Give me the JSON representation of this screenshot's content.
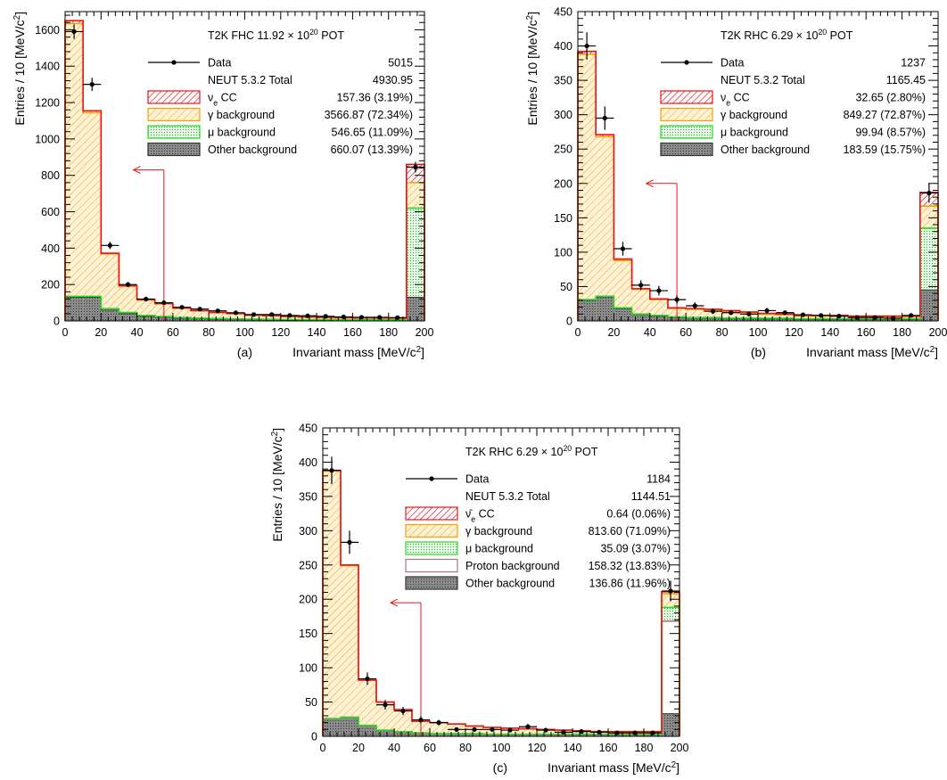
{
  "panels": [
    {
      "label": "(a)"
    },
    {
      "label": "(b)"
    },
    {
      "label": "(c)"
    }
  ],
  "colors": {
    "data": "#000000",
    "signal": "#e8141c",
    "gamma": "#f2a300",
    "gamma_fill": "#fdf1d8",
    "mu": "#22dd22",
    "mu_fill": "#e6f9e6",
    "proton": "#b07080",
    "other": "#7a7a7a",
    "other_fill": "#9c9c9c",
    "cut_arrow": "#e8141c"
  },
  "chart_data": [
    {
      "type": "histogram",
      "title": "T2K FHC 11.92 × 10²⁰ POT",
      "xlabel": "Invariant mass [MeV/c²]",
      "ylabel": "Entries / 10 [MeV/c²]",
      "xlim": [
        0,
        200
      ],
      "ylim": [
        0,
        1700
      ],
      "xticks": [
        0,
        20,
        40,
        60,
        80,
        100,
        120,
        140,
        160,
        180,
        200
      ],
      "yticks": [
        0,
        200,
        400,
        600,
        800,
        1000,
        1200,
        1400,
        1600
      ],
      "bin_edges": [
        0,
        10,
        20,
        30,
        40,
        50,
        60,
        70,
        80,
        90,
        100,
        110,
        120,
        130,
        140,
        150,
        160,
        170,
        180,
        190,
        200
      ],
      "stack": [
        {
          "name": "Other background",
          "values": [
            130,
            130,
            60,
            40,
            25,
            20,
            15,
            12,
            10,
            8,
            7,
            6,
            5,
            4,
            4,
            3,
            3,
            3,
            3,
            130
          ]
        },
        {
          "name": "μ background",
          "values": [
            5,
            5,
            8,
            6,
            5,
            4,
            4,
            3,
            3,
            3,
            3,
            3,
            3,
            3,
            3,
            3,
            3,
            3,
            3,
            490
          ]
        },
        {
          "name": "γ background",
          "values": [
            1500,
            1010,
            300,
            145,
            85,
            70,
            50,
            40,
            32,
            28,
            20,
            18,
            15,
            13,
            11,
            10,
            9,
            9,
            8,
            140
          ]
        },
        {
          "name": "νe CC",
          "values": [
            15,
            10,
            4,
            3,
            3,
            2,
            2,
            2,
            2,
            2,
            2,
            2,
            2,
            2,
            2,
            2,
            2,
            2,
            2,
            100
          ]
        }
      ],
      "data_points": {
        "name": "Data",
        "x": [
          5,
          15,
          25,
          35,
          45,
          55,
          65,
          75,
          85,
          95,
          105,
          115,
          125,
          135,
          145,
          155,
          165,
          175,
          185,
          195
        ],
        "y": [
          1590,
          1300,
          415,
          200,
          120,
          100,
          75,
          65,
          55,
          45,
          35,
          35,
          30,
          28,
          25,
          22,
          20,
          20,
          18,
          845
        ],
        "yerr": [
          40,
          36,
          20,
          14,
          11,
          10,
          9,
          8,
          7,
          7,
          6,
          6,
          5,
          5,
          5,
          5,
          4,
          4,
          4,
          29
        ]
      },
      "cut": {
        "x": 55,
        "y": 830
      },
      "legend": [
        {
          "label": "Data",
          "value": "5015"
        },
        {
          "label": "NEUT 5.3.2 Total",
          "value": "4930.95"
        },
        {
          "label": "νe CC",
          "value": "157.36 (3.19%)"
        },
        {
          "label": "γ background",
          "value": "3566.87 (72.34%)"
        },
        {
          "label": "μ background",
          "value": "546.65 (11.09%)"
        },
        {
          "label": "Other background",
          "value": "660.07 (13.39%)"
        }
      ]
    },
    {
      "type": "histogram",
      "title": "T2K RHC 6.29 × 10²⁰ POT",
      "xlabel": "Invariant mass [MeV/c²]",
      "ylabel": "Entries / 10 [MeV/c²]",
      "xlim": [
        0,
        200
      ],
      "ylim": [
        0,
        450
      ],
      "xticks": [
        0,
        20,
        40,
        60,
        80,
        100,
        120,
        140,
        160,
        180,
        200
      ],
      "yticks": [
        0,
        50,
        100,
        150,
        200,
        250,
        300,
        350,
        400,
        450
      ],
      "bin_edges": [
        0,
        10,
        20,
        30,
        40,
        50,
        60,
        70,
        80,
        90,
        100,
        110,
        120,
        130,
        140,
        150,
        160,
        170,
        180,
        190,
        200
      ],
      "stack": [
        {
          "name": "Other background",
          "values": [
            30,
            35,
            18,
            9,
            7,
            5,
            4,
            4,
            3,
            3,
            3,
            3,
            2,
            2,
            2,
            2,
            2,
            2,
            2,
            45
          ]
        },
        {
          "name": "μ background",
          "values": [
            1,
            1,
            1,
            1,
            1,
            1,
            1,
            1,
            1,
            1,
            1,
            1,
            1,
            1,
            1,
            1,
            1,
            1,
            1,
            90
          ]
        },
        {
          "name": "γ background",
          "values": [
            357,
            232,
            69,
            36,
            23,
            12,
            12,
            11,
            10,
            8,
            6,
            5,
            4,
            4,
            4,
            3,
            3,
            3,
            3,
            32
          ]
        },
        {
          "name": "νe CC",
          "values": [
            4,
            3,
            2,
            1,
            1,
            1,
            1,
            1,
            1,
            1,
            1,
            1,
            1,
            1,
            1,
            1,
            1,
            1,
            1,
            20
          ]
        }
      ],
      "data_points": {
        "name": "Data",
        "x": [
          5,
          15,
          25,
          35,
          45,
          55,
          65,
          75,
          85,
          95,
          105,
          115,
          125,
          135,
          145,
          155,
          165,
          175,
          185,
          195
        ],
        "y": [
          400,
          295,
          105,
          52,
          44,
          31,
          22,
          14,
          12,
          10,
          15,
          12,
          9,
          8,
          7,
          5,
          5,
          4,
          8,
          186
        ],
        "yerr": [
          20,
          17,
          10,
          7,
          7,
          6,
          5,
          4,
          3,
          3,
          4,
          3,
          3,
          3,
          3,
          2,
          2,
          2,
          3,
          14
        ]
      },
      "cut": {
        "x": 55,
        "y": 200
      },
      "legend": [
        {
          "label": "Data",
          "value": "1237"
        },
        {
          "label": "NEUT 5.3.2 Total",
          "value": "1165.45"
        },
        {
          "label": "νe CC",
          "value": "32.65 (2.80%)"
        },
        {
          "label": "γ background",
          "value": "849.27 (72.87%)"
        },
        {
          "label": "μ background",
          "value": "99.94 (8.57%)"
        },
        {
          "label": "Other background",
          "value": "183.59 (15.75%)"
        }
      ]
    },
    {
      "type": "histogram",
      "title": "T2K RHC 6.29 × 10²⁰ POT",
      "xlabel": "Invariant mass [MeV/c²]",
      "ylabel": "Entries / 10 [MeV/c²]",
      "xlim": [
        0,
        200
      ],
      "ylim": [
        0,
        450
      ],
      "xticks": [
        0,
        20,
        40,
        60,
        80,
        100,
        120,
        140,
        160,
        180,
        200
      ],
      "yticks": [
        0,
        50,
        100,
        150,
        200,
        250,
        300,
        350,
        400,
        450
      ],
      "bin_edges": [
        0,
        10,
        20,
        30,
        40,
        50,
        60,
        70,
        80,
        90,
        100,
        110,
        120,
        130,
        140,
        150,
        160,
        170,
        180,
        190,
        200
      ],
      "stack": [
        {
          "name": "Other background",
          "values": [
            25,
            27,
            15,
            8,
            6,
            4,
            3,
            3,
            3,
            2,
            2,
            2,
            2,
            2,
            2,
            2,
            2,
            2,
            2,
            33
          ]
        },
        {
          "name": "Proton background",
          "values": [
            0,
            0,
            0,
            0,
            0,
            0,
            0,
            0,
            0,
            0,
            0,
            0,
            0,
            0,
            0,
            0,
            0,
            0,
            0,
            135
          ]
        },
        {
          "name": "μ background",
          "values": [
            1,
            1,
            1,
            1,
            1,
            1,
            1,
            1,
            1,
            1,
            1,
            1,
            1,
            1,
            1,
            1,
            1,
            1,
            1,
            20
          ]
        },
        {
          "name": "γ background",
          "values": [
            361,
            221,
            66,
            41,
            32,
            17,
            16,
            14,
            11,
            10,
            9,
            8,
            7,
            6,
            5,
            4,
            4,
            4,
            4,
            20
          ]
        },
        {
          "name": "ν̄e CC",
          "values": [
            1,
            1,
            0,
            0,
            0,
            0,
            0,
            0,
            0,
            0,
            0,
            0,
            0,
            0,
            0,
            0,
            0,
            0,
            0,
            3
          ]
        }
      ],
      "data_points": {
        "name": "Data",
        "x": [
          5,
          15,
          25,
          35,
          45,
          55,
          65,
          75,
          85,
          95,
          105,
          115,
          125,
          135,
          145,
          155,
          165,
          175,
          185,
          195
        ],
        "y": [
          388,
          283,
          84,
          46,
          37,
          24,
          20,
          10,
          10,
          10,
          9,
          14,
          9,
          6,
          7,
          6,
          5,
          5,
          5,
          212
        ],
        "yerr": [
          20,
          17,
          9,
          7,
          6,
          5,
          4,
          3,
          3,
          3,
          3,
          4,
          3,
          3,
          3,
          2,
          2,
          2,
          2,
          15
        ]
      },
      "cut": {
        "x": 55,
        "y": 195
      },
      "legend": [
        {
          "label": "Data",
          "value": "1184"
        },
        {
          "label": "NEUT 5.3.2 Total",
          "value": "1144.51"
        },
        {
          "label": "ν̄e CC",
          "value": "0.64 (0.06%)"
        },
        {
          "label": "γ background",
          "value": "813.60 (71.09%)"
        },
        {
          "label": "μ background",
          "value": "35.09 (3.07%)"
        },
        {
          "label": "Proton background",
          "value": "158.32 (13.83%)"
        },
        {
          "label": "Other background",
          "value": "136.86 (11.96%)"
        }
      ]
    }
  ]
}
